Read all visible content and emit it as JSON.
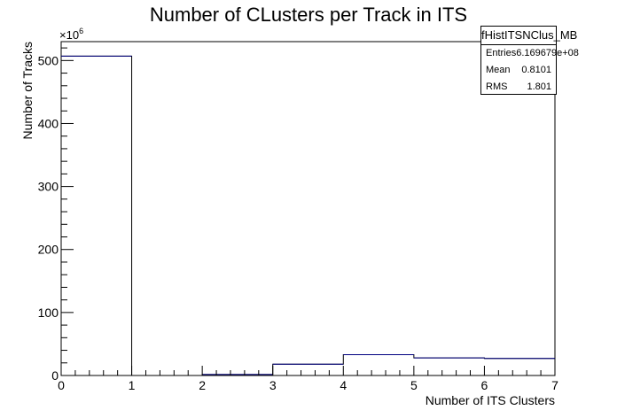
{
  "chart_data": {
    "type": "histogram",
    "title": "Number of CLusters per Track in ITS",
    "xlabel": "Number of ITS Clusters",
    "ylabel": "Number of Tracks",
    "y_exponent_label": "×10",
    "y_exponent_power": "6",
    "xlim": [
      0,
      7
    ],
    "ylim": [
      0,
      530
    ],
    "x_ticks": [
      "0",
      "1",
      "2",
      "3",
      "4",
      "5",
      "6",
      "7"
    ],
    "y_ticks": [
      "0",
      "100",
      "200",
      "300",
      "400",
      "500"
    ],
    "bins": [
      {
        "x0": 0,
        "x1": 1,
        "value": 507
      },
      {
        "x0": 1,
        "x1": 2,
        "value": 0
      },
      {
        "x0": 2,
        "x1": 3,
        "value": 1.5
      },
      {
        "x0": 3,
        "x1": 4,
        "value": 18
      },
      {
        "x0": 4,
        "x1": 5,
        "value": 33
      },
      {
        "x0": 5,
        "x1": 6,
        "value": 28
      },
      {
        "x0": 6,
        "x1": 7,
        "value": 27
      }
    ],
    "line_color": "#000080"
  },
  "stats_box": {
    "name": "fHistITSNClus_MB",
    "rows": [
      {
        "label": "Entries",
        "value": "6.169679e+08"
      },
      {
        "label": "Mean",
        "value": "0.8101"
      },
      {
        "label": "RMS",
        "value": "1.801"
      }
    ]
  }
}
